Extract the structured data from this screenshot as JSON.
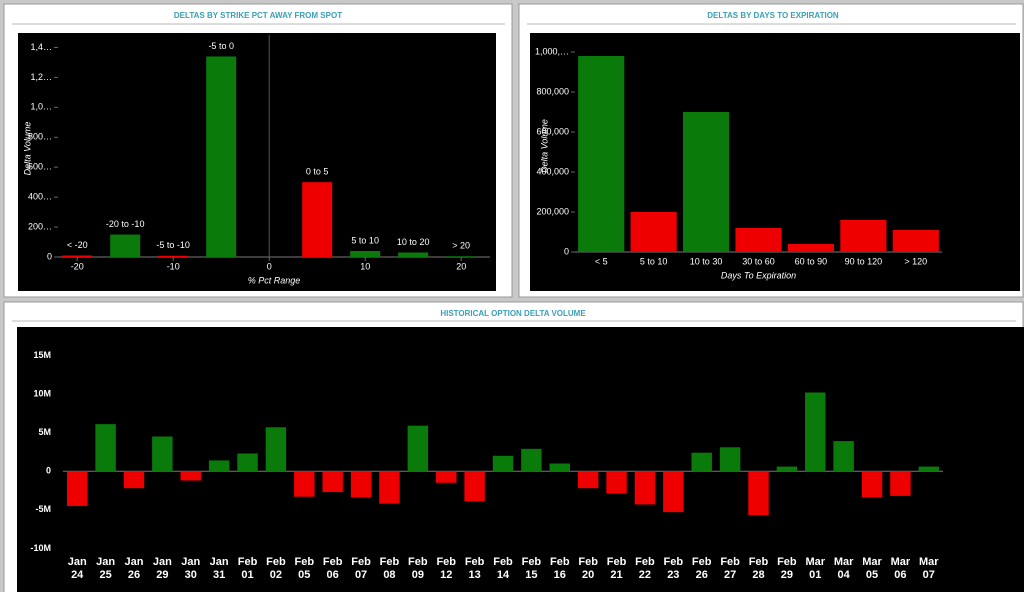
{
  "chart_data": [
    {
      "type": "bar",
      "title": "DELTAS BY STRIKE PCT AWAY FROM SPOT",
      "x_label": "% Pct Range",
      "y_label": "Delta Volume",
      "categories": [
        "< -20",
        "-20 to -10",
        "-5 to -10",
        "-5 to 0",
        "0 to 5",
        "5 to 10",
        "10 to 20",
        "> 20"
      ],
      "x": [
        -20,
        -15,
        -10,
        -5,
        5,
        10,
        15,
        20
      ],
      "values": [
        10000,
        150000,
        8000,
        1340000,
        500000,
        40000,
        30000,
        5000
      ],
      "colors": [
        "#ee0000",
        "#0a7a0a",
        "#ee0000",
        "#0a7a0a",
        "#ee0000",
        "#0a7a0a",
        "#0a7a0a",
        "#0a7a0a"
      ],
      "xlim": [
        -22,
        23
      ],
      "xticks": [
        -20,
        -10,
        0,
        10,
        20
      ],
      "ylim": [
        0,
        1450000
      ],
      "yticks": [
        0,
        {
          "value": 200000,
          "label": "200…"
        },
        {
          "value": 400000,
          "label": "400…"
        },
        {
          "value": 600000,
          "label": "600…"
        },
        {
          "value": 800000,
          "label": "800…"
        },
        {
          "value": 1000000,
          "label": "1,0…"
        },
        {
          "value": 1200000,
          "label": "1,2…"
        },
        {
          "value": 1400000,
          "label": "1,4…"
        }
      ]
    },
    {
      "type": "bar",
      "title": "DELTAS BY DAYS TO EXPIRATION",
      "x_label": "Days To Expiration",
      "y_label": "Delta Volume",
      "categories": [
        "< 5",
        "5 to 10",
        "10 to 30",
        "30 to 60",
        "60 to 90",
        "90 to 120",
        "> 120"
      ],
      "values": [
        980000,
        200000,
        700000,
        120000,
        40000,
        160000,
        110000
      ],
      "colors": [
        "#0a7a0a",
        "#ee0000",
        "#0a7a0a",
        "#ee0000",
        "#ee0000",
        "#ee0000",
        "#ee0000"
      ],
      "ylim": [
        0,
        1060000
      ],
      "yticks": [
        0,
        {
          "value": 200000,
          "label": "200,000"
        },
        {
          "value": 400000,
          "label": "400,000"
        },
        {
          "value": 600000,
          "label": "600,000"
        },
        {
          "value": 800000,
          "label": "800,000"
        },
        {
          "value": 1000000,
          "label": "1,000,…"
        }
      ]
    },
    {
      "type": "bar",
      "title": "HISTORICAL OPTION DELTA VOLUME",
      "categories": [
        "Jan 24",
        "Jan 25",
        "Jan 26",
        "Jan 29",
        "Jan 30",
        "Jan 31",
        "Feb 01",
        "Feb 02",
        "Feb 05",
        "Feb 06",
        "Feb 07",
        "Feb 08",
        "Feb 09",
        "Feb 12",
        "Feb 13",
        "Feb 14",
        "Feb 15",
        "Feb 16",
        "Feb 20",
        "Feb 21",
        "Feb 22",
        "Feb 23",
        "Feb 26",
        "Feb 27",
        "Feb 28",
        "Feb 29",
        "Mar 01",
        "Mar 04",
        "Mar 05",
        "Mar 06",
        "Mar 07"
      ],
      "values": [
        -4500000,
        6100000,
        -2200000,
        4500000,
        -1200000,
        1400000,
        2300000,
        5700000,
        -3300000,
        -2700000,
        -3400000,
        -4200000,
        5900000,
        -1500000,
        -3900000,
        2000000,
        2900000,
        1000000,
        -2200000,
        -2900000,
        -4300000,
        -5300000,
        2400000,
        3100000,
        -5700000,
        600000,
        10200000,
        3900000,
        -3400000,
        -3200000,
        600000
      ],
      "positive_color": "#0a7a0a",
      "negative_color": "#ee0000",
      "ylim": [
        -11500000,
        17000000
      ],
      "yticks": [
        {
          "value": -10000000,
          "label": "-10M"
        },
        {
          "value": -5000000,
          "label": "-5M"
        },
        0,
        {
          "value": 5000000,
          "label": "5M"
        },
        {
          "value": 10000000,
          "label": "10M"
        },
        {
          "value": 15000000,
          "label": "15M"
        }
      ]
    }
  ]
}
